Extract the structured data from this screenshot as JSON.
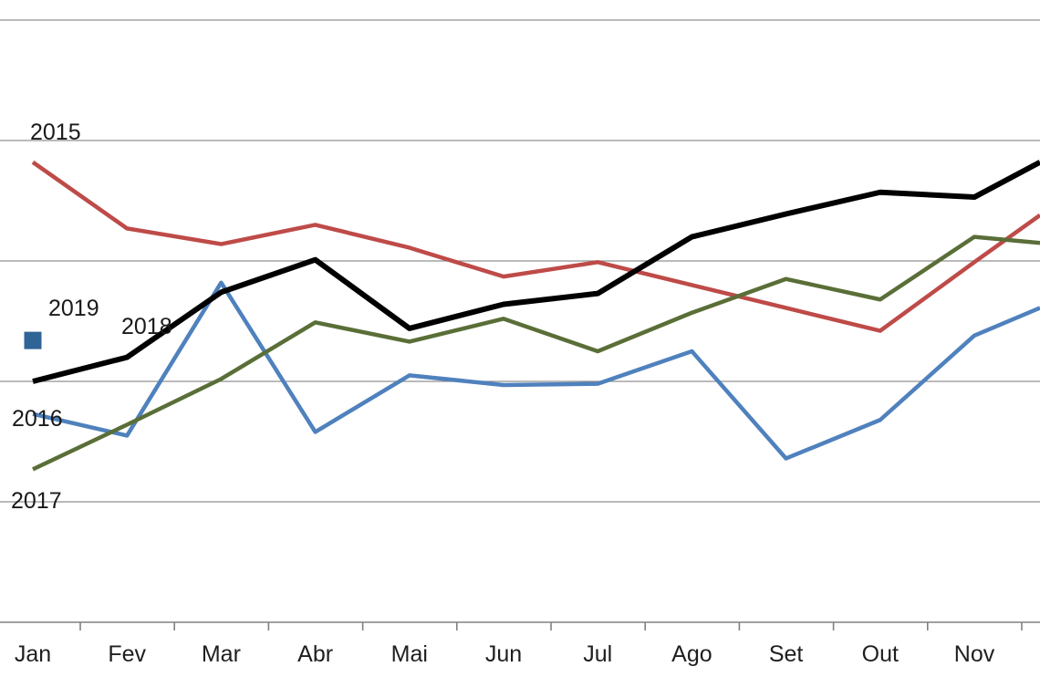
{
  "chart_data": {
    "type": "line",
    "title": "",
    "categories": [
      "Jan",
      "Fev",
      "Mar",
      "Abr",
      "Mai",
      "Jun",
      "Jul",
      "Ago",
      "Set",
      "Out",
      "Nov"
    ],
    "x_axis": {
      "tick_count": 11,
      "note": "month labels in Portuguese; lines continue past Nov and are clipped at the right edge of the frame (Dez not visible)"
    },
    "y_axis": {
      "labels_visible": false,
      "gridlines_above_axis": 5,
      "note": "y-axis scale cropped out of frame; values estimated in gridline units above the x-axis baseline (1.0 = one gridline interval)"
    },
    "legend_style": "series name labels placed inline near the start of each line",
    "series": [
      {
        "name": "2015",
        "color": "#be4b48",
        "line_width": 4.5,
        "values": [
          3.82,
          3.27,
          3.14,
          3.3,
          3.11,
          2.87,
          2.99,
          2.8,
          2.61,
          2.42,
          2.99
        ],
        "value_at_right_edge": 3.38
      },
      {
        "name": "2016",
        "color": "#4f81bd",
        "line_width": 4.5,
        "values": [
          1.73,
          1.55,
          2.82,
          1.58,
          2.05,
          1.97,
          1.98,
          2.25,
          1.36,
          1.68,
          2.38
        ],
        "value_at_right_edge": 2.61
      },
      {
        "name": "2017",
        "color": "#5a6e37",
        "line_width": 4.5,
        "values": [
          1.27,
          1.64,
          2.02,
          2.49,
          2.33,
          2.52,
          2.25,
          2.57,
          2.85,
          2.68,
          3.2
        ],
        "value_at_right_edge": 3.15
      },
      {
        "name": "2018",
        "color": "#000000",
        "line_width": 6,
        "values": [
          2.0,
          2.2,
          2.74,
          3.01,
          2.44,
          2.64,
          2.73,
          3.2,
          3.39,
          3.57,
          3.53
        ],
        "value_at_right_edge": 3.82
      },
      {
        "name": "2019",
        "color": "#2e6496",
        "marker": "square",
        "marker_size": 19,
        "values": [
          2.34
        ]
      }
    ],
    "style": {
      "background": "#ffffff",
      "gridline_color": "#909090",
      "axis_color": "#808080",
      "text_color": "#1f1f1f"
    }
  }
}
